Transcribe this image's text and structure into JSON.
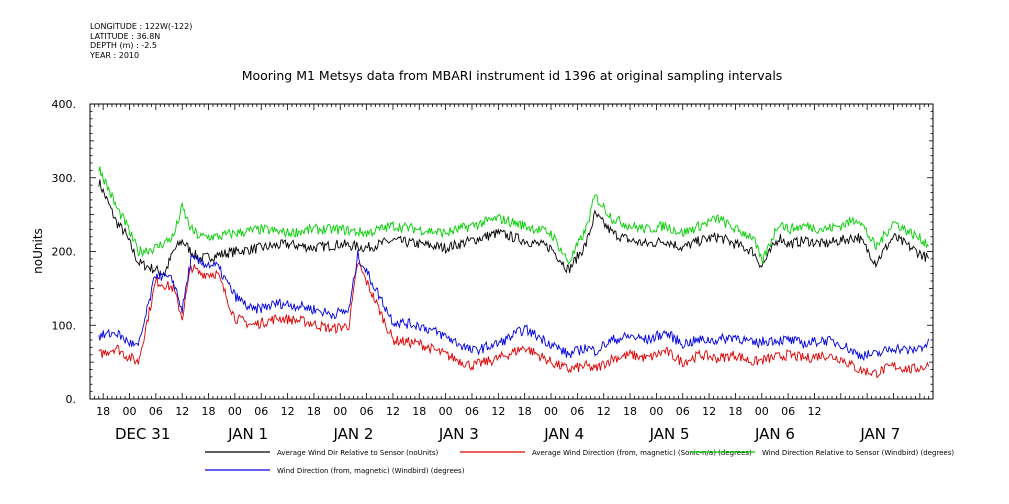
{
  "meta": {
    "longitude": "LONGITUDE : 122W(-122)",
    "latitude": "LATITUDE : 36.8N",
    "depth": "DEPTH (m) : -2.5",
    "year": "YEAR : 2010"
  },
  "chart_data": {
    "type": "line",
    "title": "Mooring M1 Metsys data from MBARI instrument id 1396 at original sampling intervals",
    "ylabel": "noUnits",
    "xlabel": "",
    "ylim": [
      0,
      400
    ],
    "yticks": [
      "0.",
      "100.",
      "200.",
      "300.",
      "400."
    ],
    "xlim_hours": [
      -9,
      183
    ],
    "hour_tick_labels": [
      "18",
      "00",
      "06",
      "12",
      "18",
      "00",
      "06",
      "12",
      "18",
      "00",
      "06",
      "12",
      "18",
      "00",
      "06",
      "12",
      "18",
      "00",
      "06",
      "12",
      "18",
      "00",
      "06",
      "12",
      "18",
      "00",
      "06",
      "12"
    ],
    "date_labels": [
      "DEC 31",
      "JAN 1",
      "JAN 2",
      "JAN 3",
      "JAN 4",
      "JAN 5",
      "JAN 6",
      "JAN 7"
    ],
    "grid": false,
    "legend_position": "bottom",
    "series": [
      {
        "name": "Average Wind Dir Relative to Sensor (noUnits)",
        "color": "#000000",
        "base": 205,
        "points": [
          [
            -7,
            295
          ],
          [
            -3,
            240
          ],
          [
            -1,
            225
          ],
          [
            2,
            185
          ],
          [
            6,
            175
          ],
          [
            8,
            170
          ],
          [
            10,
            200
          ],
          [
            12,
            215
          ],
          [
            14,
            200
          ],
          [
            16,
            190
          ],
          [
            20,
            195
          ],
          [
            24,
            200
          ],
          [
            30,
            205
          ],
          [
            36,
            210
          ],
          [
            42,
            205
          ],
          [
            48,
            210
          ],
          [
            54,
            205
          ],
          [
            60,
            215
          ],
          [
            66,
            210
          ],
          [
            72,
            205
          ],
          [
            78,
            215
          ],
          [
            84,
            225
          ],
          [
            90,
            215
          ],
          [
            96,
            205
          ],
          [
            100,
            175
          ],
          [
            104,
            210
          ],
          [
            106,
            250
          ],
          [
            110,
            225
          ],
          [
            114,
            215
          ],
          [
            118,
            210
          ],
          [
            122,
            215
          ],
          [
            126,
            205
          ],
          [
            130,
            215
          ],
          [
            134,
            220
          ],
          [
            138,
            210
          ],
          [
            142,
            200
          ],
          [
            144,
            180
          ],
          [
            148,
            220
          ],
          [
            150,
            210
          ],
          [
            154,
            215
          ],
          [
            158,
            210
          ],
          [
            162,
            215
          ],
          [
            166,
            220
          ],
          [
            170,
            185
          ],
          [
            174,
            220
          ],
          [
            178,
            205
          ],
          [
            182,
            190
          ]
        ]
      },
      {
        "name": "Average Wind Direction (from, magnetic) (Sonic-n/a) (degrees)",
        "color": "#e00000",
        "base": 60,
        "points": [
          [
            -7,
            60
          ],
          [
            -3,
            70
          ],
          [
            -1,
            60
          ],
          [
            2,
            50
          ],
          [
            6,
            160
          ],
          [
            10,
            150
          ],
          [
            12,
            110
          ],
          [
            14,
            180
          ],
          [
            16,
            170
          ],
          [
            20,
            170
          ],
          [
            24,
            110
          ],
          [
            28,
            100
          ],
          [
            34,
            110
          ],
          [
            40,
            105
          ],
          [
            46,
            95
          ],
          [
            50,
            100
          ],
          [
            52,
            185
          ],
          [
            60,
            80
          ],
          [
            66,
            75
          ],
          [
            72,
            60
          ],
          [
            78,
            45
          ],
          [
            84,
            55
          ],
          [
            90,
            70
          ],
          [
            96,
            50
          ],
          [
            100,
            40
          ],
          [
            104,
            45
          ],
          [
            106,
            40
          ],
          [
            110,
            55
          ],
          [
            114,
            60
          ],
          [
            118,
            55
          ],
          [
            122,
            65
          ],
          [
            126,
            50
          ],
          [
            130,
            60
          ],
          [
            134,
            55
          ],
          [
            138,
            60
          ],
          [
            142,
            50
          ],
          [
            146,
            55
          ],
          [
            150,
            60
          ],
          [
            154,
            55
          ],
          [
            158,
            60
          ],
          [
            162,
            55
          ],
          [
            166,
            40
          ],
          [
            170,
            35
          ],
          [
            174,
            45
          ],
          [
            178,
            40
          ],
          [
            182,
            45
          ]
        ]
      },
      {
        "name": "Wind Direction Relative to Sensor (Windbird) (degrees)",
        "color": "#00d000",
        "base": 225,
        "points": [
          [
            -7,
            315
          ],
          [
            -3,
            260
          ],
          [
            -1,
            240
          ],
          [
            2,
            200
          ],
          [
            6,
            205
          ],
          [
            10,
            220
          ],
          [
            12,
            260
          ],
          [
            14,
            230
          ],
          [
            16,
            220
          ],
          [
            20,
            220
          ],
          [
            24,
            225
          ],
          [
            30,
            230
          ],
          [
            36,
            225
          ],
          [
            42,
            230
          ],
          [
            48,
            230
          ],
          [
            54,
            225
          ],
          [
            60,
            235
          ],
          [
            66,
            230
          ],
          [
            72,
            225
          ],
          [
            78,
            235
          ],
          [
            84,
            245
          ],
          [
            90,
            235
          ],
          [
            96,
            225
          ],
          [
            100,
            185
          ],
          [
            104,
            230
          ],
          [
            106,
            275
          ],
          [
            110,
            245
          ],
          [
            114,
            235
          ],
          [
            118,
            230
          ],
          [
            122,
            235
          ],
          [
            126,
            225
          ],
          [
            130,
            235
          ],
          [
            134,
            245
          ],
          [
            138,
            230
          ],
          [
            142,
            220
          ],
          [
            144,
            185
          ],
          [
            148,
            240
          ],
          [
            150,
            230
          ],
          [
            154,
            235
          ],
          [
            158,
            230
          ],
          [
            162,
            235
          ],
          [
            166,
            245
          ],
          [
            170,
            205
          ],
          [
            174,
            240
          ],
          [
            178,
            225
          ],
          [
            182,
            210
          ]
        ]
      },
      {
        "name": "Wind Direction (from, magnetic) (Windbird) (degrees)",
        "color": "#0000e0",
        "base": 80,
        "points": [
          [
            -7,
            85
          ],
          [
            -3,
            90
          ],
          [
            -1,
            80
          ],
          [
            2,
            70
          ],
          [
            6,
            170
          ],
          [
            10,
            160
          ],
          [
            12,
            120
          ],
          [
            14,
            190
          ],
          [
            16,
            185
          ],
          [
            20,
            180
          ],
          [
            24,
            140
          ],
          [
            28,
            120
          ],
          [
            34,
            130
          ],
          [
            40,
            125
          ],
          [
            46,
            115
          ],
          [
            50,
            120
          ],
          [
            52,
            195
          ],
          [
            60,
            105
          ],
          [
            66,
            100
          ],
          [
            72,
            85
          ],
          [
            78,
            65
          ],
          [
            84,
            75
          ],
          [
            90,
            95
          ],
          [
            96,
            75
          ],
          [
            100,
            60
          ],
          [
            104,
            70
          ],
          [
            106,
            65
          ],
          [
            110,
            80
          ],
          [
            114,
            85
          ],
          [
            118,
            80
          ],
          [
            122,
            90
          ],
          [
            126,
            75
          ],
          [
            130,
            80
          ],
          [
            134,
            80
          ],
          [
            138,
            85
          ],
          [
            142,
            75
          ],
          [
            146,
            80
          ],
          [
            150,
            80
          ],
          [
            154,
            75
          ],
          [
            158,
            80
          ],
          [
            162,
            75
          ],
          [
            166,
            60
          ],
          [
            170,
            60
          ],
          [
            174,
            70
          ],
          [
            178,
            65
          ],
          [
            182,
            75
          ]
        ]
      }
    ]
  }
}
